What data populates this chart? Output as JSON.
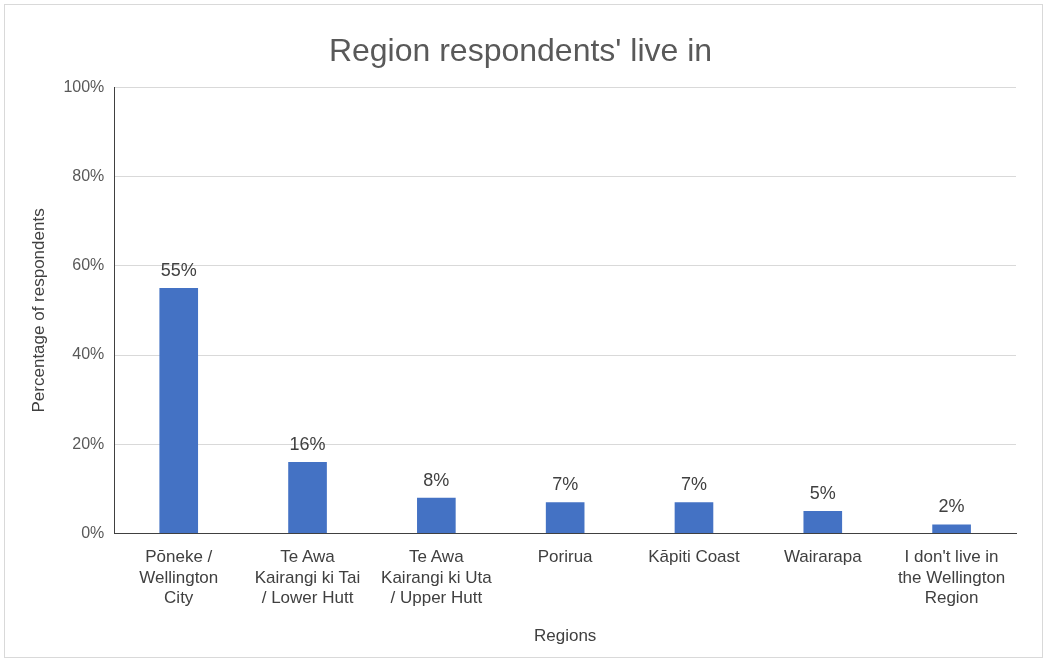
{
  "chart_data": {
    "type": "bar",
    "title": "Region respondents' live in",
    "xlabel": "Regions",
    "ylabel": "Percentage of respondents",
    "categories": [
      "Pōneke / Wellington City",
      "Te Awa Kairangi ki Tai / Lower Hutt",
      "Te Awa Kairangi ki Uta / Upper Hutt",
      "Porirua",
      "Kāpiti Coast",
      "Wairarapa",
      "I don't live in the Wellington Region"
    ],
    "values": [
      55,
      16,
      8,
      7,
      7,
      5,
      2
    ],
    "color": "#4472c4",
    "value_labels": [
      "55%",
      "16%",
      "8%",
      "7%",
      "7%",
      "5%",
      "2%"
    ],
    "ylim": [
      0,
      100
    ],
    "yticks": [
      {
        "value": 0,
        "label": "0%"
      },
      {
        "value": 20,
        "label": "20%"
      },
      {
        "value": 40,
        "label": "40%"
      },
      {
        "value": 60,
        "label": "60%"
      },
      {
        "value": 80,
        "label": "80%"
      },
      {
        "value": 100,
        "label": "100%"
      }
    ],
    "grid": "y",
    "legend": false
  }
}
